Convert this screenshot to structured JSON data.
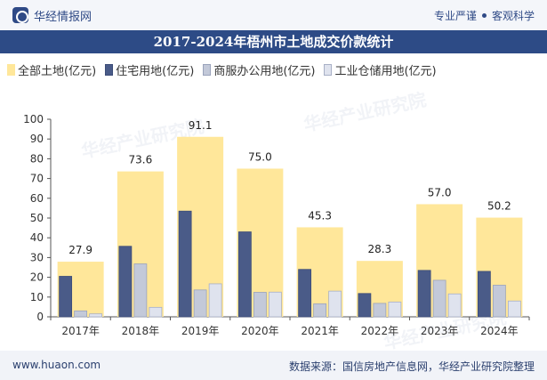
{
  "header": {
    "brand": "华经情报网",
    "tagline_left": "专业严谨",
    "tagline_right": "客观科学"
  },
  "title": "2017-2024年梧州市土地成交价款统计",
  "footer": {
    "website": "www.huaon.com",
    "source": "数据来源：国信房地产信息网，华经产业研究院整理"
  },
  "watermark": "华经产业研究院",
  "colors": {
    "total": "#ffe79a",
    "residential": "#4a5b88",
    "commercial": "#c3c9d9",
    "industrial": "#dfe3ee"
  },
  "chart_data": {
    "type": "bar",
    "categories": [
      "2017年",
      "2018年",
      "2019年",
      "2020年",
      "2021年",
      "2022年",
      "2023年",
      "2024年"
    ],
    "series": [
      {
        "name": "全部土地(亿元)",
        "values": [
          27.9,
          73.6,
          91.1,
          75.0,
          45.3,
          28.3,
          57.0,
          50.2
        ],
        "labels": [
          "27.9",
          "73.6",
          "91.1",
          "75.0",
          "45.3",
          "28.3",
          "57.0",
          "50.2"
        ]
      },
      {
        "name": "住宅用地(亿元)",
        "values": [
          20.5,
          35.7,
          53.5,
          43.0,
          24.0,
          11.8,
          23.5,
          23.0
        ]
      },
      {
        "name": "商服办公用地(亿元)",
        "values": [
          3.0,
          26.8,
          13.6,
          12.4,
          6.6,
          6.8,
          18.5,
          16.0
        ]
      },
      {
        "name": "工业仓储用地(亿元)",
        "values": [
          1.5,
          4.8,
          16.7,
          12.5,
          13.0,
          7.5,
          11.6,
          8.0
        ]
      }
    ],
    "yticks": [
      "0",
      "10",
      "20",
      "30",
      "40",
      "50",
      "60",
      "70",
      "80",
      "90",
      "100"
    ],
    "ylim": [
      0,
      100
    ],
    "legend_position": "top",
    "grid": false
  }
}
